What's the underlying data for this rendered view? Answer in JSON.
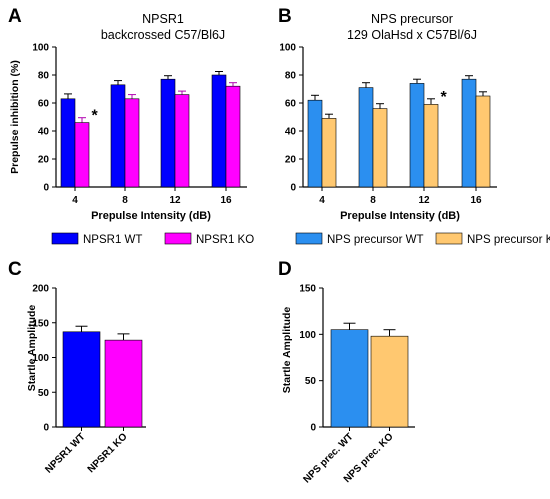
{
  "figure": {
    "panel_letters": [
      "A",
      "B",
      "C",
      "D"
    ]
  },
  "colors": {
    "wt_npsr1": "#0000ff",
    "ko_npsr1": "#ff00ff",
    "wt_nps": "#2b8ff0",
    "ko_nps": "#ffc870",
    "errorbar_npsr1_ko": "#b000b0"
  },
  "chart_data": [
    {
      "panel": "A",
      "type": "bar",
      "title": [
        "NPSR1",
        "backcrossed C57/Bl6J"
      ],
      "xlabel": "Prepulse Intensity (dB)",
      "ylabel": "Prepulse inhibition (%)",
      "categories": [
        "4",
        "8",
        "12",
        "16"
      ],
      "ylim": [
        0,
        100
      ],
      "yticks": [
        "0",
        "20",
        "40",
        "60",
        "80",
        "100"
      ],
      "series": [
        {
          "name": "NPSR1 WT",
          "color_key": "wt_npsr1",
          "values": [
            63,
            73,
            77,
            80
          ],
          "errors": [
            3.5,
            3,
            2.5,
            2.5
          ]
        },
        {
          "name": "NPSR1 KO",
          "color_key": "ko_npsr1",
          "values": [
            46,
            63,
            66,
            72
          ],
          "errors": [
            3.5,
            3,
            2.5,
            2.5
          ]
        }
      ],
      "annotations": [
        {
          "category": "4",
          "series": 1,
          "text": "*"
        }
      ],
      "legend": "bottom"
    },
    {
      "panel": "B",
      "type": "bar",
      "title": [
        "NPS precursor",
        "129 OlaHsd x C57Bl/6J"
      ],
      "xlabel": "Prepulse Intensity (dB)",
      "ylabel": "",
      "categories": [
        "4",
        "8",
        "12",
        "16"
      ],
      "ylim": [
        0,
        100
      ],
      "yticks": [
        "0",
        "20",
        "40",
        "60",
        "80",
        "100"
      ],
      "series": [
        {
          "name": "NPS precursor WT",
          "color_key": "wt_nps",
          "values": [
            62,
            71,
            74,
            77
          ],
          "errors": [
            3.5,
            3.5,
            3,
            2.5
          ]
        },
        {
          "name": "NPS precursor KO",
          "color_key": "ko_nps",
          "values": [
            49,
            56,
            59,
            65
          ],
          "errors": [
            3,
            3.5,
            4,
            3
          ]
        }
      ],
      "annotations": [
        {
          "category": "12",
          "series": 1,
          "text": "*"
        }
      ],
      "legend": "bottom"
    },
    {
      "panel": "C",
      "type": "bar",
      "xlabel": "",
      "ylabel": "Startle Amplitude",
      "categories": [
        "NPSR1 WT",
        "NPSR1 KO"
      ],
      "ylim": [
        0,
        200
      ],
      "yticks": [
        "0",
        "50",
        "100",
        "150",
        "200"
      ],
      "values": [
        137,
        125
      ],
      "errors": [
        8,
        9
      ],
      "color_keys": [
        "wt_npsr1",
        "ko_npsr1"
      ]
    },
    {
      "panel": "D",
      "type": "bar",
      "xlabel": "",
      "ylabel": "Startle Amplitude",
      "categories": [
        "NPS prec. WT",
        "NPS prec. KO"
      ],
      "ylim": [
        0,
        150
      ],
      "yticks": [
        "0",
        "50",
        "100",
        "150"
      ],
      "values": [
        105,
        98
      ],
      "errors": [
        7,
        7
      ],
      "color_keys": [
        "wt_nps",
        "ko_nps"
      ]
    }
  ]
}
